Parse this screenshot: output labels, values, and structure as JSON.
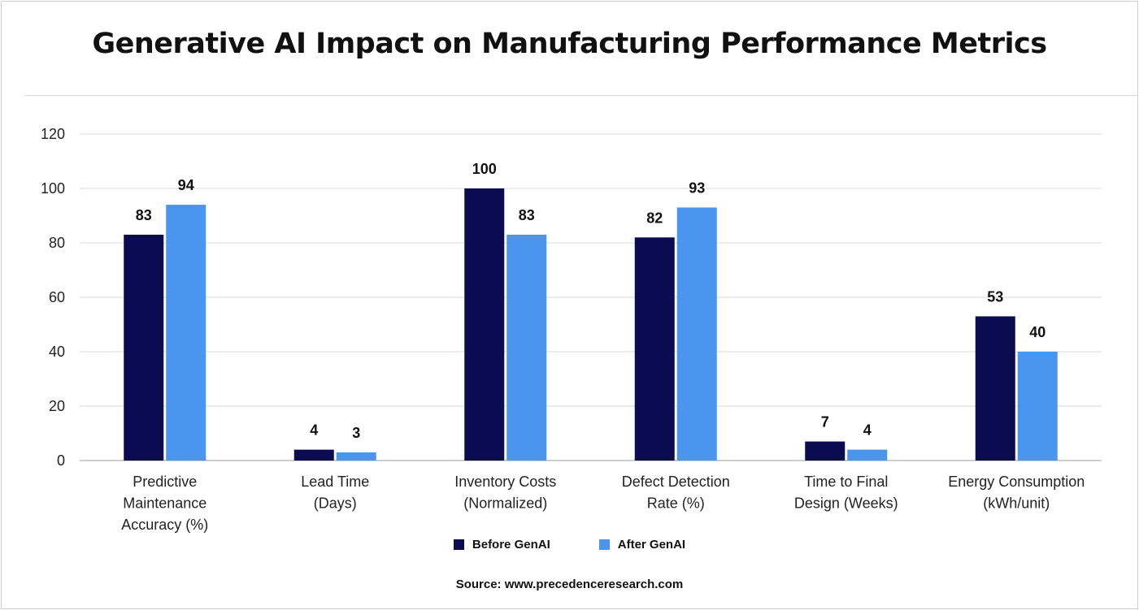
{
  "chart_data": {
    "type": "bar",
    "title": "Generative AI Impact on Manufacturing Performance Metrics",
    "categories": [
      [
        "Predictive",
        "Maintenance",
        "Accuracy (%)"
      ],
      [
        "Lead Time",
        "(Days)"
      ],
      [
        "Inventory Costs",
        "(Normalized)"
      ],
      [
        "Defect Detection",
        "Rate (%)"
      ],
      [
        "Time to Final",
        "Design (Weeks)"
      ],
      [
        "Energy Consumption",
        "(kWh/unit)"
      ]
    ],
    "series": [
      {
        "name": "Before GenAI",
        "color": "#0b0b52",
        "values": [
          83,
          4,
          100,
          82,
          7,
          53
        ]
      },
      {
        "name": "After GenAI",
        "color": "#4a96ee",
        "values": [
          94,
          3,
          83,
          93,
          4,
          40
        ]
      }
    ],
    "ylim": [
      0,
      120
    ],
    "yticks": [
      0,
      20,
      40,
      60,
      80,
      100,
      120
    ],
    "grid": true,
    "legend": "bottom",
    "data_labels": true,
    "source": "Source: www.precedenceresearch.com"
  }
}
